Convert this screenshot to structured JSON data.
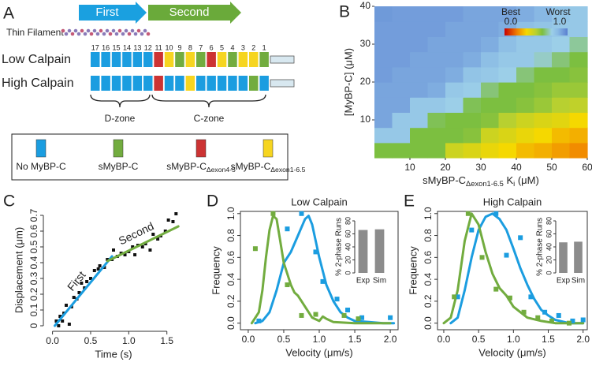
{
  "panels": [
    "A",
    "B",
    "C",
    "D",
    "E"
  ],
  "diagram": {
    "arrows": [
      {
        "label": "First",
        "color": "#1aa0e0"
      },
      {
        "label": "Second",
        "color": "#6aaa3a"
      }
    ],
    "filament_label": "Thin Filament",
    "domain_numbers": [
      17,
      16,
      15,
      14,
      13,
      12,
      11,
      10,
      9,
      8,
      7,
      6,
      5,
      4,
      3,
      2,
      1
    ],
    "rows": [
      {
        "label": "Low Calpain",
        "colors": [
          "#1b9de0",
          "#1b9de0",
          "#1b9de0",
          "#1b9de0",
          "#1b9de0",
          "#1b9de0",
          "#cc3333",
          "#f6d520",
          "#72ac3f",
          "#f6d520",
          "#72ac3f",
          "#cc3333",
          "#f6d520",
          "#72ac3f",
          "#f6d520",
          "#f6d520",
          "#72ac3f"
        ]
      },
      {
        "label": "High Calpain",
        "colors": [
          "#1b9de0",
          "#1b9de0",
          "#1b9de0",
          "#1b9de0",
          "#1b9de0",
          "#1b9de0",
          "#cc3333",
          "#1b9de0",
          "#1b9de0",
          "#f6d520",
          "#1b9de0",
          "#1b9de0",
          "#1b9de0",
          "#1b9de0",
          "#1b9de0",
          "#72ac3f",
          "#1b9de0"
        ]
      }
    ],
    "zones": [
      "D-zone",
      "C-zone"
    ],
    "legend": [
      {
        "label": [
          "No MyBP-C"
        ],
        "color": "#1b9de0"
      },
      {
        "label": [
          "sMyBP-C"
        ],
        "color": "#72ac3f"
      },
      {
        "label": [
          "sMyBP-C",
          "Δexon4-5"
        ],
        "color": "#cc3333"
      },
      {
        "label": [
          "sMyBP-C",
          "Δexon1-6.5"
        ],
        "color": "#f6d520"
      }
    ]
  },
  "chart_data": [
    {
      "type": "heatmap",
      "xlabel": [
        "sMyBP-C",
        "Δexon1-6.5",
        " K",
        "i",
        " (μM)"
      ],
      "ylabel": "[MyBP-C] (μM)",
      "xlim": [
        0,
        60
      ],
      "xticks": [
        10,
        20,
        30,
        40,
        50,
        60
      ],
      "ylim": [
        0,
        40
      ],
      "yticks": [
        10,
        20,
        30,
        40
      ],
      "xbins": [
        0,
        5,
        10,
        15,
        20,
        25,
        30,
        35,
        40,
        45,
        50,
        55,
        60
      ],
      "ybins": [
        0,
        4,
        8,
        12,
        16,
        20,
        24,
        28,
        32,
        36,
        40
      ],
      "values": [
        [
          0.6,
          0.6,
          0.6,
          0.6,
          0.45,
          0.42,
          0.38,
          0.35,
          0.3,
          0.28,
          0.25,
          0.22
        ],
        [
          0.78,
          0.78,
          0.6,
          0.6,
          0.6,
          0.58,
          0.45,
          0.42,
          0.38,
          0.35,
          0.3,
          0.28
        ],
        [
          0.9,
          0.78,
          0.78,
          0.62,
          0.6,
          0.6,
          0.58,
          0.5,
          0.45,
          0.42,
          0.4,
          0.35
        ],
        [
          0.9,
          0.9,
          0.78,
          0.78,
          0.75,
          0.62,
          0.6,
          0.6,
          0.58,
          0.55,
          0.5,
          0.48
        ],
        [
          0.9,
          0.9,
          0.9,
          0.88,
          0.78,
          0.76,
          0.65,
          0.6,
          0.6,
          0.58,
          0.55,
          0.55
        ],
        [
          0.92,
          0.9,
          0.9,
          0.9,
          0.88,
          0.8,
          0.78,
          0.75,
          0.65,
          0.6,
          0.6,
          0.58
        ],
        [
          0.92,
          0.92,
          0.9,
          0.9,
          0.9,
          0.88,
          0.82,
          0.78,
          0.78,
          0.72,
          0.65,
          0.6
        ],
        [
          0.92,
          0.92,
          0.92,
          0.9,
          0.9,
          0.9,
          0.88,
          0.82,
          0.78,
          0.78,
          0.75,
          0.68
        ],
        [
          0.92,
          0.92,
          0.92,
          0.92,
          0.9,
          0.9,
          0.9,
          0.88,
          0.82,
          0.8,
          0.78,
          0.78
        ],
        [
          0.93,
          0.92,
          0.92,
          0.92,
          0.92,
          0.9,
          0.9,
          0.9,
          0.88,
          0.85,
          0.8,
          0.78
        ]
      ],
      "zlim": [
        0,
        1
      ],
      "colorscale": [
        [
          0,
          "#c80000"
        ],
        [
          0.2,
          "#f08000"
        ],
        [
          0.35,
          "#f5d800"
        ],
        [
          0.5,
          "#b8d030"
        ],
        [
          0.6,
          "#7cbf40"
        ],
        [
          0.75,
          "#9ccfe8"
        ],
        [
          0.85,
          "#88b8e4"
        ],
        [
          1,
          "#5a7fd0"
        ]
      ],
      "colorbar": {
        "labels": [
          "Best",
          "Worst"
        ],
        "ticks": [
          {
            "value": 0,
            "label": "0.0"
          },
          {
            "value": 1,
            "label": "1.0"
          }
        ]
      }
    },
    {
      "type": "line",
      "xlabel": "Time (s)",
      "ylabel": "Displacement (μm)",
      "xlim": [
        -0.12,
        1.72
      ],
      "xticks": [
        {
          "value": 0,
          "label": "0.0"
        },
        0.5,
        {
          "value": 1,
          "label": "1.0"
        },
        1.5
      ],
      "ylim": [
        -0.035,
        0.74
      ],
      "yticks": [
        0,
        0.1,
        0.2,
        0.3,
        0.4,
        0.5,
        0.6,
        0.7
      ],
      "frame": false,
      "line_labels": true,
      "series": [
        {
          "style": "marker",
          "color": "#111111",
          "x": [
            0.05,
            0.08,
            0.1,
            0.13,
            0.15,
            0.18,
            0.22,
            0.25,
            0.28,
            0.32,
            0.35,
            0.38,
            0.42,
            0.45,
            0.5,
            0.55,
            0.6,
            0.62,
            0.68,
            0.72,
            0.78,
            0.8,
            0.85,
            0.9,
            0.95,
            1.0,
            1.05,
            1.08,
            1.12,
            1.18,
            1.22,
            1.28,
            1.32,
            1.38,
            1.42,
            1.48,
            1.52,
            1.58,
            1.62
          ],
          "values": [
            0.03,
            0,
            0.06,
            0.03,
            0.08,
            0.13,
            0.01,
            0.12,
            0.18,
            0.17,
            0.21,
            0.27,
            0.24,
            0.28,
            0.3,
            0.35,
            0.36,
            0.38,
            0.37,
            0.42,
            0.42,
            0.48,
            0.44,
            0.46,
            0.45,
            0.47,
            0.5,
            0.45,
            0.51,
            0.5,
            0.52,
            0.48,
            0.58,
            0.55,
            0.57,
            0.6,
            0.67,
            0.66,
            0.71
          ]
        },
        {
          "name": "First",
          "style": "line",
          "color": "#1b9de0",
          "x": [
            0.03,
            0.78
          ],
          "values": [
            0.0,
            0.44
          ]
        },
        {
          "name": "Second",
          "style": "line",
          "color": "#72ac3f",
          "x": [
            0.72,
            1.65
          ],
          "values": [
            0.41,
            0.63
          ]
        }
      ]
    },
    {
      "type": "line",
      "title": "Low Calpain",
      "xlabel": "Velocity (μm/s)",
      "ylabel": "Frequency",
      "xlim": [
        -0.11,
        2.11
      ],
      "xticks": [
        {
          "value": 0,
          "label": "0.0"
        },
        0.5,
        {
          "value": 1,
          "label": "1.0"
        },
        1.5,
        {
          "value": 2,
          "label": "2.0"
        }
      ],
      "ylim": [
        -0.06,
        1.02
      ],
      "yticks": [
        {
          "value": 0,
          "label": "0.0"
        },
        0.2,
        0.4,
        0.6,
        0.8,
        {
          "value": 1,
          "label": "1.0"
        }
      ],
      "frame": true,
      "series": [
        {
          "style": "line",
          "color": "#1b9de0",
          "x": [
            0.1,
            0.2,
            0.3,
            0.4,
            0.5,
            0.6,
            0.7,
            0.8,
            0.85,
            0.9,
            1.0,
            1.1,
            1.2,
            1.3,
            1.4,
            1.5,
            1.7,
            1.9,
            2.05
          ],
          "values": [
            0,
            0.02,
            0.1,
            0.3,
            0.55,
            0.65,
            0.8,
            0.95,
            0.98,
            0.9,
            0.6,
            0.35,
            0.2,
            0.1,
            0.05,
            0.02,
            0.01,
            0,
            0
          ]
        },
        {
          "style": "line",
          "color": "#72ac3f",
          "x": [
            0.05,
            0.15,
            0.2,
            0.25,
            0.3,
            0.35,
            0.4,
            0.45,
            0.5,
            0.55,
            0.6,
            0.65,
            0.7,
            0.8,
            0.9,
            1.0,
            1.05,
            1.1,
            1.2,
            1.5,
            1.8,
            2.0
          ],
          "values": [
            0,
            0.1,
            0.3,
            0.6,
            0.85,
            0.98,
            0.95,
            0.75,
            0.55,
            0.45,
            0.35,
            0.28,
            0.25,
            0.15,
            0.05,
            0.02,
            0.06,
            0.04,
            0.01,
            0,
            0,
            0
          ]
        },
        {
          "style": "marker",
          "color": "#1b9de0",
          "x": [
            0.15,
            0.55,
            0.75,
            0.95,
            1.05,
            1.25,
            1.4,
            1.6,
            2.0
          ],
          "values": [
            0.02,
            0.86,
            1.0,
            0.65,
            0.38,
            0.22,
            0.12,
            0.05,
            0.05
          ]
        },
        {
          "style": "marker",
          "color": "#72ac3f",
          "x": [
            0.1,
            0.35,
            0.55,
            0.75,
            0.95,
            1.35,
            1.55
          ],
          "values": [
            0.68,
            1.0,
            0.35,
            0.07,
            0.08,
            0.07,
            0.04
          ]
        }
      ]
    },
    {
      "type": "bar",
      "ylabel": "% 2-phase Runs",
      "categories": [
        "Exp",
        "Sim"
      ],
      "values": [
        66,
        67
      ],
      "color": "#8c8c8c",
      "ylim": [
        0,
        80
      ],
      "yticks": [
        0,
        20,
        40,
        60,
        80
      ]
    },
    {
      "type": "line",
      "title": "High Calpain",
      "xlabel": "Velocity (μm/s)",
      "ylabel": "Frequency",
      "xlim": [
        -0.09,
        2.06
      ],
      "xticks": [
        {
          "value": 0,
          "label": "0.0"
        },
        0.5,
        {
          "value": 1,
          "label": "1.0"
        },
        1.5,
        {
          "value": 2,
          "label": "2.0"
        }
      ],
      "ylim": [
        -0.06,
        1.02
      ],
      "yticks": [
        {
          "value": 0,
          "label": "0.0"
        },
        0.2,
        0.4,
        0.6,
        0.8,
        {
          "value": 1,
          "label": "1.0"
        }
      ],
      "frame": true,
      "series": [
        {
          "style": "line",
          "color": "#1b9de0",
          "x": [
            0.1,
            0.2,
            0.3,
            0.4,
            0.5,
            0.6,
            0.7,
            0.8,
            0.9,
            1.0,
            1.1,
            1.2,
            1.3,
            1.4,
            1.5,
            1.6,
            1.8,
            2.0
          ],
          "values": [
            0,
            0.05,
            0.3,
            0.6,
            0.85,
            0.97,
            1.0,
            0.95,
            0.85,
            0.68,
            0.5,
            0.35,
            0.22,
            0.12,
            0.07,
            0.03,
            0,
            0
          ]
        },
        {
          "style": "line",
          "color": "#72ac3f",
          "x": [
            0,
            0.1,
            0.2,
            0.3,
            0.4,
            0.5,
            0.6,
            0.7,
            0.8,
            0.9,
            1.0,
            1.1,
            1.2,
            1.4,
            1.6,
            2.0
          ],
          "values": [
            0,
            0.05,
            0.3,
            0.75,
            1.0,
            0.9,
            0.65,
            0.45,
            0.32,
            0.25,
            0.15,
            0.1,
            0.05,
            0.02,
            0,
            0
          ]
        },
        {
          "style": "marker",
          "color": "#1b9de0",
          "x": [
            0.2,
            0.4,
            0.75,
            0.9,
            1.1,
            1.25,
            1.45,
            1.65,
            1.85,
            2.0
          ],
          "values": [
            0.24,
            0.85,
            1.0,
            0.62,
            0.78,
            0.24,
            0.1,
            0.07,
            0.02,
            0.03
          ]
        },
        {
          "style": "marker",
          "color": "#72ac3f",
          "x": [
            0.15,
            0.35,
            0.55,
            0.75,
            0.95,
            1.15,
            1.35,
            1.55,
            1.8
          ],
          "values": [
            0.24,
            1.0,
            0.6,
            0.31,
            0.23,
            0.1,
            0.05,
            0.02,
            0
          ]
        }
      ]
    },
    {
      "type": "bar",
      "ylabel": "% 2-phase Runs",
      "categories": [
        "Exp",
        "Sim"
      ],
      "values": [
        47,
        48
      ],
      "color": "#8c8c8c",
      "ylim": [
        0,
        80
      ],
      "yticks": [
        0,
        20,
        40,
        60,
        80
      ]
    }
  ]
}
